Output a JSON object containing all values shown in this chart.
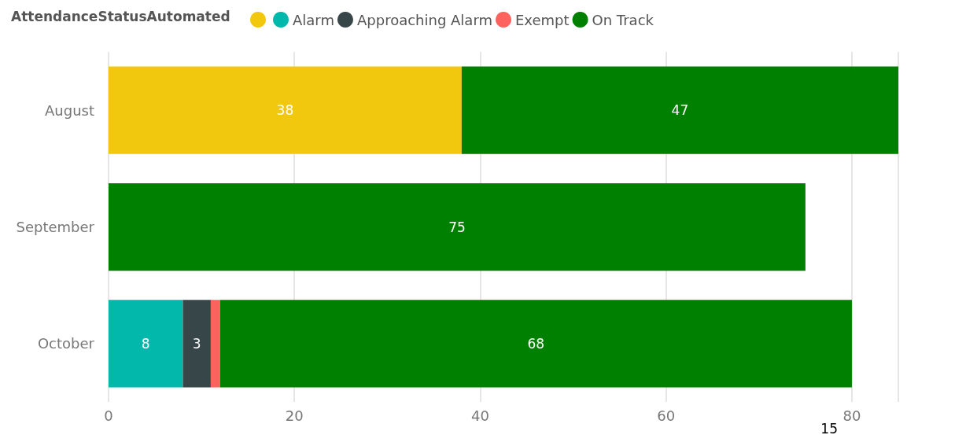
{
  "chart_data": {
    "type": "bar",
    "orientation": "horizontal",
    "stacked": true,
    "legend_title": "AttendanceStatusAutomated",
    "legend": "top left",
    "grid": "x",
    "categories": [
      "August",
      "September",
      "October"
    ],
    "xlim": [
      0,
      85
    ],
    "xticks": [
      0,
      20,
      40,
      60,
      80
    ],
    "series": [
      {
        "color": "#f2c80f",
        "values": [
          38,
          null,
          null
        ],
        "value_labels": [
          "38",
          null,
          null
        ]
      },
      {
        "name": "Alarm",
        "color": "#01b8aa",
        "values": [
          null,
          null,
          8
        ],
        "value_labels": [
          null,
          null,
          "8"
        ]
      },
      {
        "name": "Approaching Alarm",
        "color": "#374649",
        "values": [
          null,
          null,
          3
        ],
        "value_labels": [
          null,
          null,
          "3"
        ]
      },
      {
        "name": "Exempt",
        "color": "#fd625e",
        "values": [
          null,
          null,
          1
        ],
        "value_labels": [
          null,
          null,
          null
        ]
      },
      {
        "name": "On Track",
        "color": "#008000",
        "values": [
          47,
          75,
          68
        ],
        "value_labels": [
          "47",
          "75",
          "68"
        ]
      }
    ],
    "annotations": [
      "15"
    ]
  }
}
